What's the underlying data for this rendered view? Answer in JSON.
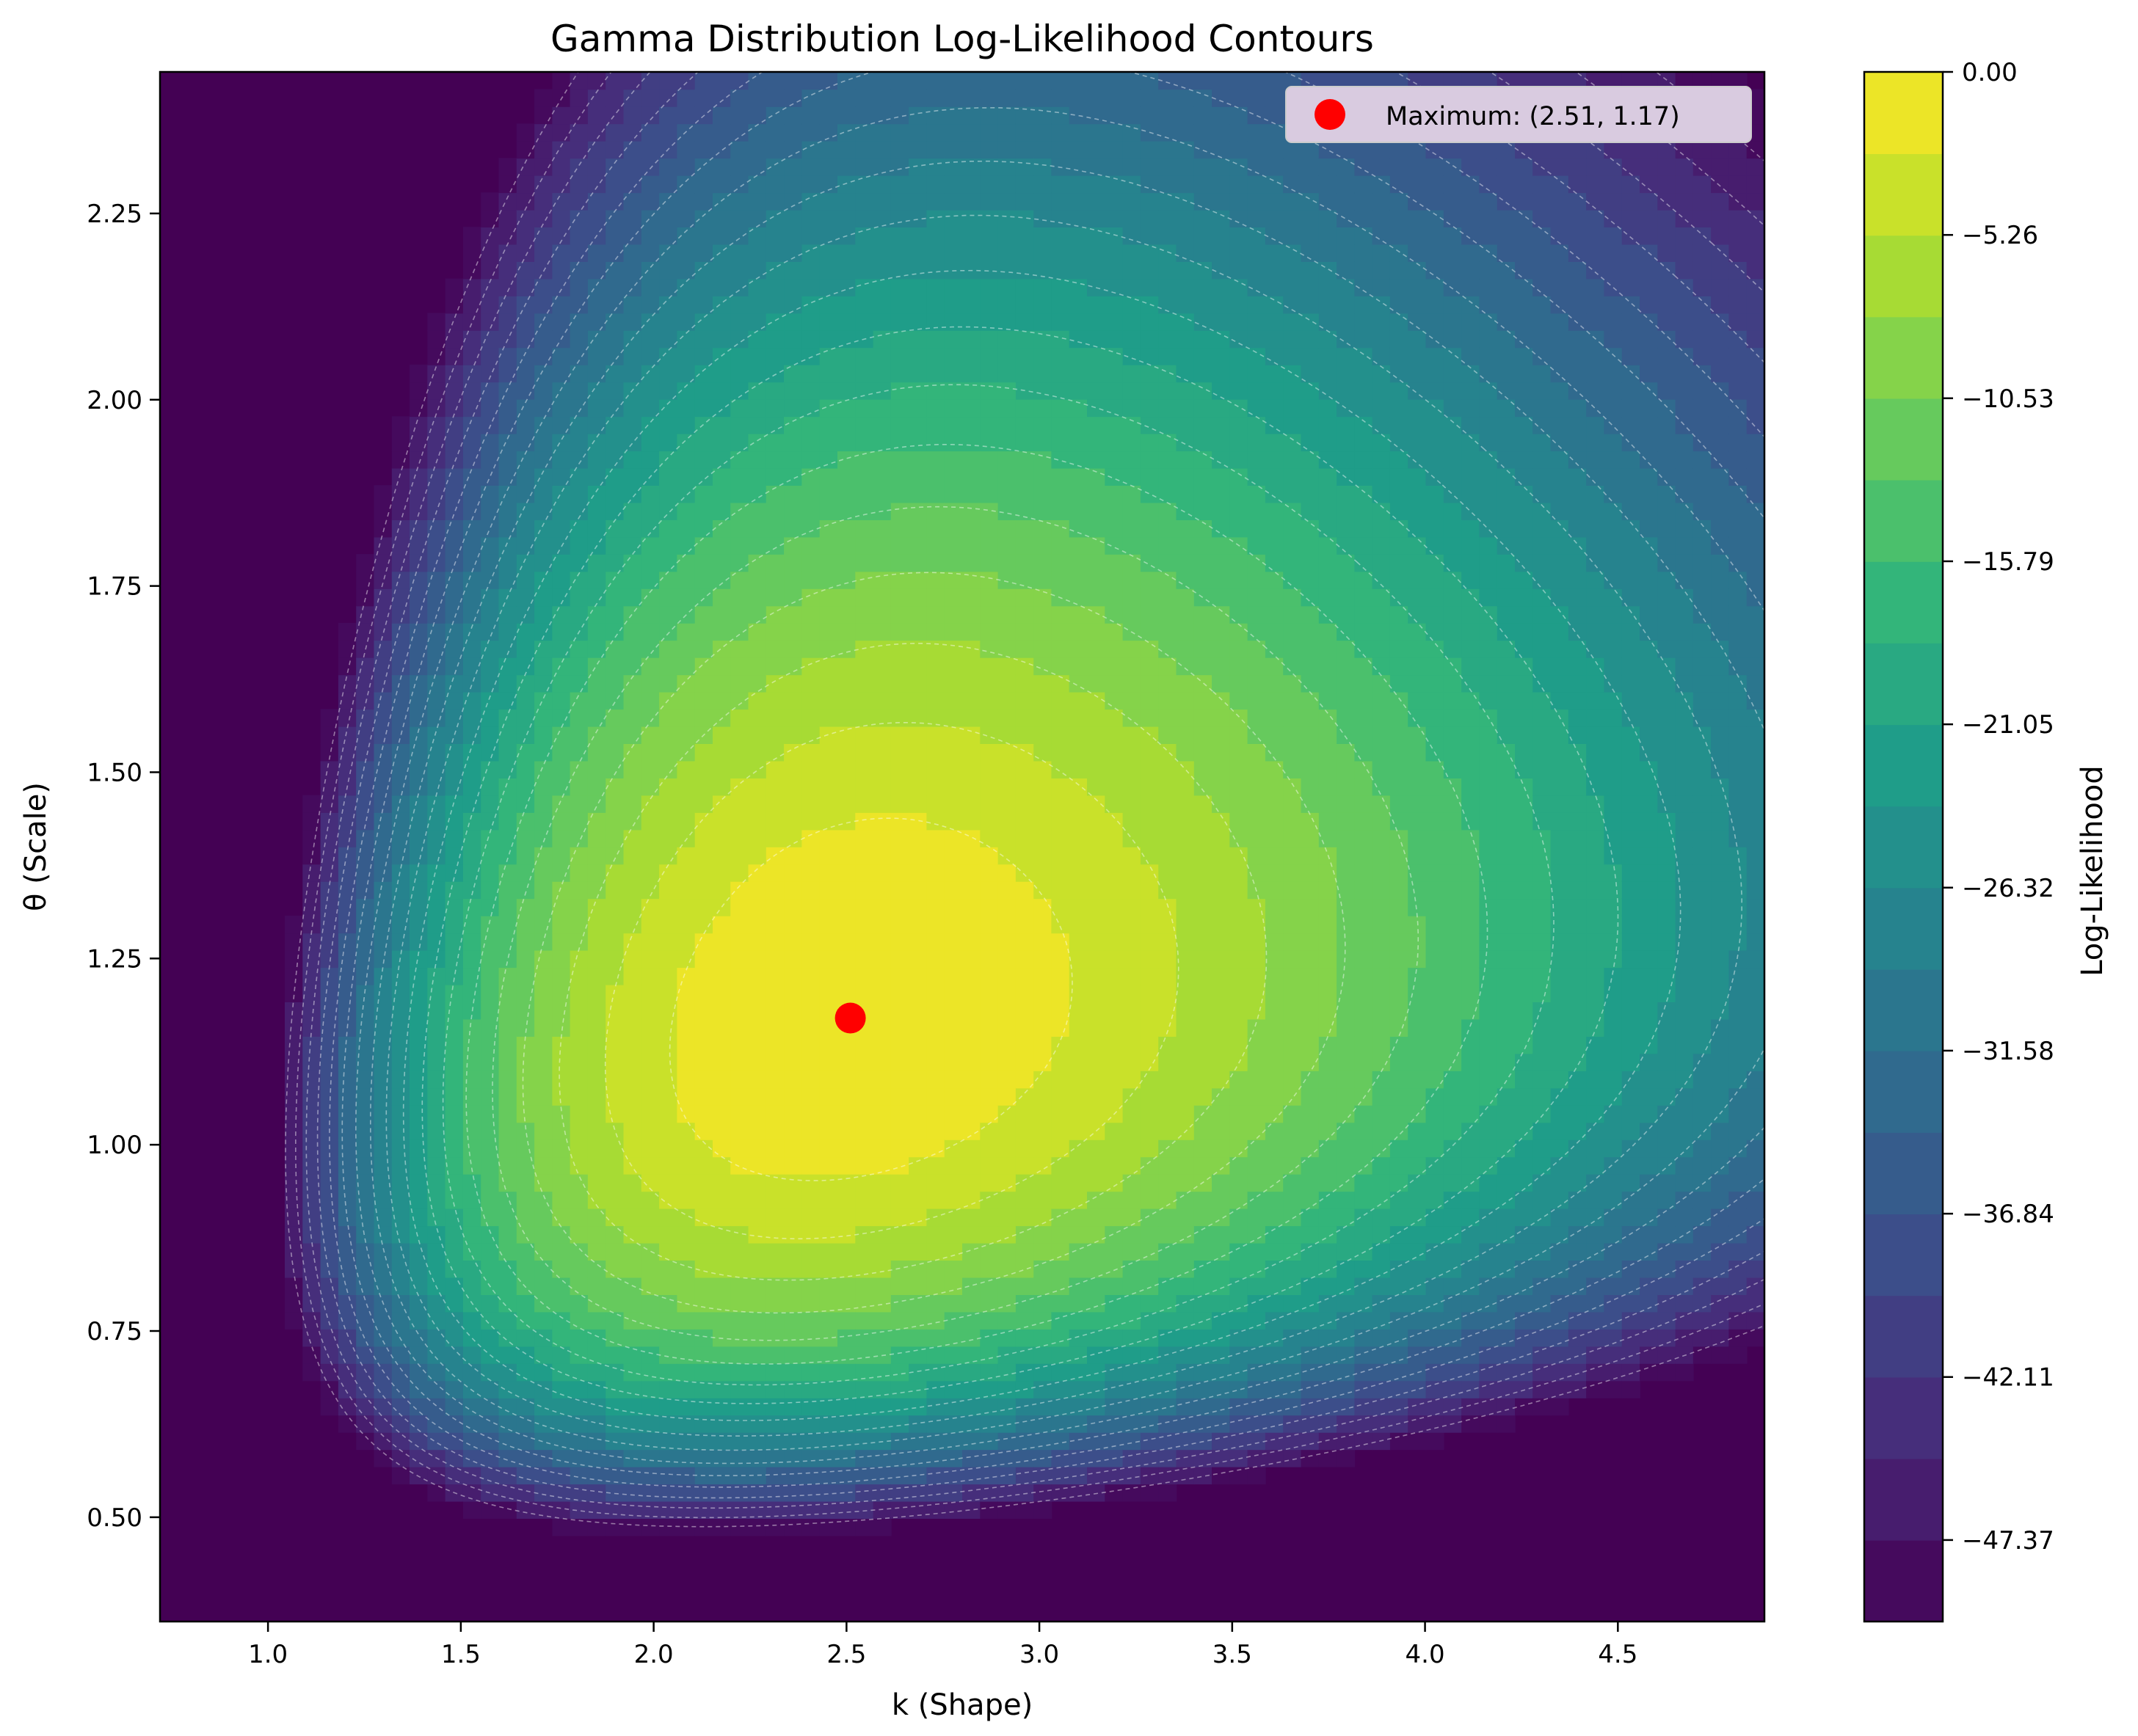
{
  "chart_data": {
    "type": "contour",
    "title": "Gamma Distribution Log-Likelihood Contours",
    "xlabel": "k (Shape)",
    "ylabel": "θ (Scale)",
    "xlim": [
      0.72,
      4.88
    ],
    "ylim": [
      0.36,
      2.44
    ],
    "x_ticks": [
      1.0,
      1.5,
      2.0,
      2.5,
      3.0,
      3.5,
      4.0,
      4.5
    ],
    "x_tick_labels": [
      "1.0",
      "1.5",
      "2.0",
      "2.5",
      "3.0",
      "3.5",
      "4.0",
      "4.5"
    ],
    "y_ticks": [
      0.5,
      0.75,
      1.0,
      1.25,
      1.5,
      1.75,
      2.0,
      2.25
    ],
    "y_tick_labels": [
      "0.50",
      "0.75",
      "1.00",
      "1.25",
      "1.50",
      "1.75",
      "2.00",
      "2.25"
    ],
    "maximum": {
      "k": 2.51,
      "theta": 1.17
    },
    "legend": {
      "label": "Maximum: (2.51, 1.17)",
      "position": "upper right",
      "marker_color": "#ff0000"
    },
    "colorbar": {
      "label": "Log-Likelihood",
      "range": [
        -50.0,
        0.0
      ],
      "levels": 19,
      "tick_values": [
        0.0,
        -5.26,
        -10.53,
        -15.79,
        -21.05,
        -26.32,
        -31.58,
        -36.84,
        -42.11,
        -47.37
      ],
      "tick_labels": [
        "0.00",
        "−5.26",
        "−10.53",
        "−15.79",
        "−21.05",
        "−26.32",
        "−31.58",
        "−36.84",
        "−42.11",
        "−47.37"
      ],
      "colormap": "viridis"
    },
    "grid": false
  }
}
